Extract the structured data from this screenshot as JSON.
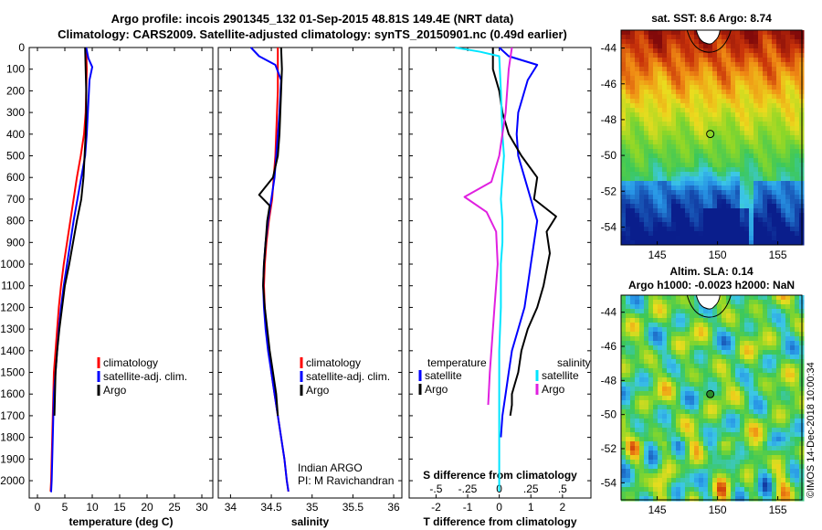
{
  "title": {
    "line1": "Argo profile: incois 2901345_132 01-Sep-2015 48.81S 149.4E (NRT data)",
    "line2": "Climatology: CARS2009. Satellite-adjusted climatology: synTS_20150901.nc (0.49d earlier)"
  },
  "colors": {
    "climatology": "#ff0000",
    "satellite": "#0000ff",
    "argo": "#000000",
    "s_satellite": "#00e5ff",
    "s_argo": "#e020e0"
  },
  "chart_data": [
    {
      "type": "line",
      "panel": "temperature",
      "xlabel": "temperature (deg C)",
      "ylabel": "",
      "xlim": [
        -1.5,
        32
      ],
      "ylim": [
        2080,
        0
      ],
      "xticks": [
        0,
        5,
        10,
        15,
        20,
        25,
        30
      ],
      "yticks": [
        0,
        100,
        200,
        300,
        400,
        500,
        600,
        700,
        800,
        900,
        1000,
        1100,
        1200,
        1300,
        1400,
        1500,
        1600,
        1700,
        1800,
        1900,
        2000
      ],
      "legend": [
        "climatology",
        "satellite-adj. clim.",
        "Argo"
      ],
      "legend_position": "lower-right",
      "series": [
        {
          "name": "climatology",
          "x": [
            8.9,
            9.0,
            8.9,
            8.8,
            8.5,
            7.9,
            7.2,
            6.6,
            6.0,
            5.4,
            4.8,
            4.3,
            3.9,
            3.6,
            3.3,
            3.0,
            2.9,
            2.8,
            2.7,
            2.6,
            2.5,
            2.4
          ],
          "depth": [
            0,
            100,
            200,
            300,
            400,
            500,
            600,
            700,
            800,
            900,
            1000,
            1100,
            1200,
            1300,
            1400,
            1500,
            1600,
            1700,
            1800,
            1900,
            2000,
            2050
          ]
        },
        {
          "name": "satellite-adj. clim.",
          "x": [
            8.9,
            9.3,
            10.0,
            9.5,
            9.2,
            9.0,
            8.7,
            8.0,
            7.3,
            6.6,
            6.0,
            5.4,
            4.8,
            4.3,
            3.9,
            3.6,
            3.3,
            3.0,
            2.9,
            2.8,
            2.7,
            2.6,
            2.5,
            2.4
          ],
          "depth": [
            0,
            50,
            90,
            150,
            300,
            400,
            500,
            600,
            700,
            800,
            900,
            1000,
            1100,
            1200,
            1300,
            1400,
            1500,
            1600,
            1700,
            1800,
            1900,
            2000,
            2050,
            2050
          ]
        },
        {
          "name": "Argo",
          "x": [
            8.7,
            8.8,
            8.9,
            8.9,
            8.8,
            8.6,
            8.4,
            8.0,
            7.2,
            6.5,
            5.8,
            5.0,
            4.5,
            4.0,
            3.6,
            3.3,
            3.2,
            3.1
          ],
          "depth": [
            0,
            100,
            200,
            300,
            400,
            500,
            600,
            700,
            800,
            900,
            1000,
            1100,
            1200,
            1300,
            1400,
            1500,
            1600,
            1700
          ]
        }
      ]
    },
    {
      "type": "line",
      "panel": "salinity",
      "xlabel": "salinity",
      "xlim": [
        33.85,
        36.1
      ],
      "ylim": [
        2080,
        0
      ],
      "xticks": [
        34,
        34.5,
        35,
        35.5,
        36
      ],
      "legend": [
        "climatology",
        "satellite-adj. clim.",
        "Argo"
      ],
      "legend_position": "lower-right",
      "annotation": [
        "Indian ARGO",
        "PI: M Ravichandran"
      ],
      "series": [
        {
          "name": "climatology",
          "x": [
            34.58,
            34.58,
            34.58,
            34.57,
            34.56,
            34.55,
            34.53,
            34.51,
            34.47,
            34.44,
            34.42,
            34.41,
            34.42,
            34.44,
            34.47,
            34.5,
            34.54,
            34.58,
            34.62,
            34.66,
            34.69,
            34.71
          ],
          "depth": [
            0,
            100,
            200,
            300,
            400,
            500,
            600,
            700,
            800,
            900,
            1000,
            1100,
            1200,
            1300,
            1400,
            1500,
            1600,
            1700,
            1800,
            1900,
            2000,
            2050
          ]
        },
        {
          "name": "satellite-adj. clim.",
          "x": [
            34.25,
            34.35,
            34.55,
            34.62,
            34.6,
            34.58,
            34.56,
            34.54,
            34.5,
            34.46,
            34.43,
            34.41,
            34.4,
            34.41,
            34.43,
            34.46,
            34.5,
            34.54,
            34.58,
            34.62,
            34.66,
            34.69,
            34.71
          ],
          "depth": [
            0,
            40,
            80,
            150,
            300,
            400,
            500,
            600,
            700,
            800,
            900,
            1000,
            1100,
            1200,
            1300,
            1400,
            1500,
            1600,
            1700,
            1800,
            1900,
            2000,
            2050
          ]
        },
        {
          "name": "Argo",
          "x": [
            34.62,
            34.63,
            34.62,
            34.61,
            34.6,
            34.58,
            34.52,
            34.35,
            34.48,
            34.45,
            34.43,
            34.41,
            34.4,
            34.42,
            34.45,
            34.48,
            34.52,
            34.56,
            34.58
          ],
          "depth": [
            0,
            100,
            200,
            300,
            400,
            500,
            600,
            680,
            730,
            800,
            900,
            1000,
            1100,
            1200,
            1300,
            1400,
            1500,
            1600,
            1700
          ]
        }
      ]
    },
    {
      "type": "line",
      "panel": "difference",
      "xlabel": "T difference from climatology",
      "x2label": "S difference from climatology",
      "xlim": [
        -2.85,
        2.9
      ],
      "ylim": [
        2080,
        0
      ],
      "xticks": [
        -2,
        -1,
        0,
        1,
        2
      ],
      "x2ticks": [
        -0.5,
        -0.25,
        0,
        0.25,
        0.5
      ],
      "s_scale": 4,
      "legend": [
        "temperature satellite",
        "temperature Argo",
        "salinity satellite",
        "salinity Argo"
      ],
      "series": [
        {
          "name": "satellite",
          "quantity": "temperature",
          "x": [
            0.0,
            0.3,
            1.2,
            0.9,
            0.6,
            0.55,
            0.6,
            0.8,
            1.0,
            1.2,
            1.1,
            1.0,
            0.9,
            0.8,
            0.6,
            0.4,
            0.3,
            0.2,
            0.1,
            0.05
          ],
          "depth": [
            0,
            40,
            80,
            150,
            300,
            400,
            500,
            600,
            700,
            800,
            900,
            1000,
            1100,
            1200,
            1300,
            1400,
            1500,
            1600,
            1700,
            1800
          ]
        },
        {
          "name": "Argo",
          "quantity": "temperature",
          "x": [
            -0.2,
            -0.2,
            0.0,
            0.1,
            0.3,
            0.7,
            1.2,
            1.1,
            1.8,
            1.5,
            1.6,
            1.4,
            1.2,
            0.9,
            0.7,
            0.6,
            0.5,
            0.4,
            0.4,
            0.35
          ],
          "depth": [
            0,
            100,
            200,
            300,
            400,
            500,
            600,
            700,
            780,
            850,
            950,
            1100,
            1200,
            1300,
            1400,
            1500,
            1550,
            1600,
            1650,
            1700
          ]
        },
        {
          "name": "satellite",
          "quantity": "salinity",
          "x": [
            -1.4,
            -0.6,
            0.0,
            0.05,
            0.1,
            0.15,
            0.1,
            0.05,
            0.1,
            0.1,
            0.05,
            0.05,
            0.0,
            0.0,
            0.0,
            0.0,
            0.0
          ],
          "depth": [
            0,
            20,
            40,
            200,
            400,
            500,
            600,
            700,
            800,
            900,
            1000,
            1200,
            1400,
            1600,
            1800,
            1950,
            2050
          ]
        },
        {
          "name": "Argo",
          "quantity": "salinity",
          "x": [
            0.4,
            0.35,
            0.3,
            0.2,
            0.0,
            -0.25,
            -1.1,
            -0.4,
            -0.1,
            -0.05,
            -0.1,
            -0.15,
            -0.2,
            -0.25,
            -0.3,
            -0.35
          ],
          "depth": [
            0,
            50,
            100,
            300,
            500,
            620,
            690,
            760,
            850,
            1000,
            1100,
            1200,
            1300,
            1400,
            1500,
            1650
          ]
        }
      ]
    },
    {
      "type": "heatmap",
      "panel": "sat-sst-map",
      "title": "sat. SST: 8.6 Argo: 8.74",
      "xlim": [
        142,
        157
      ],
      "ylim": [
        -55,
        -43
      ],
      "xticks": [
        145,
        150,
        155
      ],
      "yticks": [
        -44,
        -46,
        -48,
        -50,
        -52,
        -54
      ],
      "marker": {
        "lon": 149.4,
        "lat": -48.8
      }
    },
    {
      "type": "heatmap",
      "panel": "altim-sla-map",
      "title": "Altim. SLA: 0.14",
      "subtitle": "Argo h1000: -0.0023 h2000: NaN",
      "xlim": [
        142,
        157
      ],
      "ylim": [
        -55,
        -43
      ],
      "xticks": [
        145,
        150,
        155
      ],
      "yticks": [
        -44,
        -46,
        -48,
        -50,
        -52,
        -54
      ],
      "marker": {
        "lon": 149.4,
        "lat": -48.8
      }
    }
  ],
  "stamp": "©IMOS 14-Dec-2018 10:00:34"
}
